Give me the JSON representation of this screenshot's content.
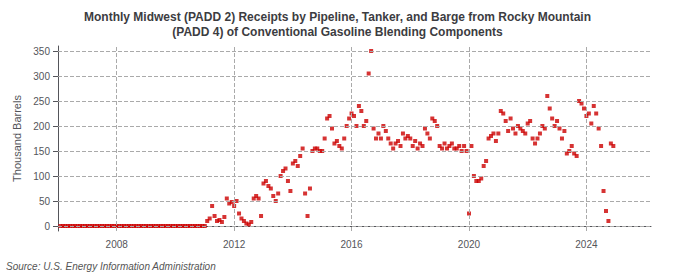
{
  "chart_data": {
    "type": "scatter",
    "title": "Monthly Midwest (PADD 2) Receipts by Pipeline, Tanker, and Barge from Rocky Mountain\n(PADD 4) of Conventional Gasoline Blending Components",
    "ylabel": "Thousand Barrels",
    "annotations": [
      "Source: U.S. Energy Information Administration"
    ],
    "color": "#cc0000",
    "marker": "square",
    "grid": true,
    "xlim": [
      2006.0,
      2026.2
    ],
    "xticks": [
      2008,
      2012,
      2016,
      2020,
      2024
    ],
    "ylim": [
      -10,
      360
    ],
    "yticks": [
      0,
      50,
      100,
      150,
      200,
      250,
      300,
      350
    ],
    "x": [
      2006.083,
      2006.167,
      2006.25,
      2006.333,
      2006.417,
      2006.5,
      2006.583,
      2006.667,
      2006.75,
      2006.833,
      2006.917,
      2007.0,
      2007.083,
      2007.167,
      2007.25,
      2007.333,
      2007.417,
      2007.5,
      2007.583,
      2007.667,
      2007.75,
      2007.833,
      2007.917,
      2008.0,
      2008.083,
      2008.167,
      2008.25,
      2008.333,
      2008.417,
      2008.5,
      2008.583,
      2008.667,
      2008.75,
      2008.833,
      2008.917,
      2009.0,
      2009.083,
      2009.167,
      2009.25,
      2009.333,
      2009.417,
      2009.5,
      2009.583,
      2009.667,
      2009.75,
      2009.833,
      2009.917,
      2010.0,
      2010.083,
      2010.167,
      2010.25,
      2010.333,
      2010.417,
      2010.5,
      2010.583,
      2010.667,
      2010.75,
      2010.833,
      2010.917,
      2011.0,
      2011.083,
      2011.167,
      2011.25,
      2011.333,
      2011.417,
      2011.5,
      2011.583,
      2011.667,
      2011.75,
      2011.833,
      2011.917,
      2012.0,
      2012.083,
      2012.167,
      2012.25,
      2012.333,
      2012.417,
      2012.5,
      2012.583,
      2012.667,
      2012.75,
      2012.833,
      2012.917,
      2013.0,
      2013.083,
      2013.167,
      2013.25,
      2013.333,
      2013.417,
      2013.5,
      2013.583,
      2013.667,
      2013.75,
      2013.833,
      2013.917,
      2014.0,
      2014.083,
      2014.167,
      2014.25,
      2014.333,
      2014.417,
      2014.5,
      2014.583,
      2014.667,
      2014.75,
      2014.833,
      2014.917,
      2015.0,
      2015.083,
      2015.167,
      2015.25,
      2015.333,
      2015.417,
      2015.5,
      2015.583,
      2015.667,
      2015.75,
      2015.833,
      2015.917,
      2016.0,
      2016.083,
      2016.167,
      2016.25,
      2016.333,
      2016.417,
      2016.5,
      2016.583,
      2016.667,
      2016.75,
      2016.833,
      2016.917,
      2017.0,
      2017.083,
      2017.167,
      2017.25,
      2017.333,
      2017.417,
      2017.5,
      2017.583,
      2017.667,
      2017.75,
      2017.833,
      2017.917,
      2018.0,
      2018.083,
      2018.167,
      2018.25,
      2018.333,
      2018.417,
      2018.5,
      2018.583,
      2018.667,
      2018.75,
      2018.833,
      2018.917,
      2019.0,
      2019.083,
      2019.167,
      2019.25,
      2019.333,
      2019.417,
      2019.5,
      2019.583,
      2019.667,
      2019.75,
      2019.833,
      2019.917,
      2020.0,
      2020.083,
      2020.167,
      2020.25,
      2020.333,
      2020.417,
      2020.5,
      2020.583,
      2020.667,
      2020.75,
      2020.833,
      2020.917,
      2021.0,
      2021.083,
      2021.167,
      2021.25,
      2021.333,
      2021.417,
      2021.5,
      2021.583,
      2021.667,
      2021.75,
      2021.833,
      2021.917,
      2022.0,
      2022.083,
      2022.167,
      2022.25,
      2022.333,
      2022.417,
      2022.5,
      2022.583,
      2022.667,
      2022.75,
      2022.833,
      2022.917,
      2023.0,
      2023.083,
      2023.167,
      2023.25,
      2023.333,
      2023.417,
      2023.5,
      2023.583,
      2023.667,
      2023.75,
      2023.833,
      2023.917,
      2024.0,
      2024.083,
      2024.167,
      2024.25,
      2024.333,
      2024.417,
      2024.5,
      2024.583,
      2024.667,
      2024.75,
      2024.833,
      2024.917
    ],
    "values": [
      0,
      0,
      0,
      0,
      0,
      0,
      0,
      0,
      0,
      0,
      0,
      0,
      0,
      0,
      0,
      0,
      0,
      0,
      0,
      0,
      0,
      0,
      0,
      0,
      0,
      0,
      0,
      0,
      0,
      0,
      0,
      0,
      0,
      0,
      0,
      0,
      0,
      0,
      0,
      0,
      0,
      0,
      0,
      0,
      0,
      0,
      0,
      0,
      0,
      0,
      0,
      0,
      0,
      0,
      0,
      0,
      0,
      0,
      0,
      0,
      10,
      15,
      40,
      20,
      10,
      12,
      8,
      18,
      55,
      45,
      48,
      40,
      50,
      25,
      15,
      10,
      5,
      3,
      8,
      55,
      60,
      55,
      20,
      85,
      90,
      80,
      75,
      60,
      50,
      65,
      100,
      110,
      115,
      90,
      70,
      125,
      130,
      120,
      140,
      155,
      65,
      20,
      75,
      150,
      155,
      155,
      150,
      150,
      175,
      215,
      220,
      195,
      165,
      170,
      160,
      155,
      175,
      200,
      215,
      225,
      220,
      200,
      240,
      230,
      200,
      210,
      305,
      350,
      195,
      175,
      185,
      175,
      200,
      190,
      175,
      165,
      155,
      165,
      170,
      160,
      185,
      175,
      180,
      175,
      160,
      170,
      155,
      165,
      160,
      195,
      185,
      175,
      215,
      210,
      200,
      160,
      155,
      165,
      155,
      160,
      165,
      155,
      155,
      160,
      150,
      160,
      150,
      25,
      160,
      100,
      90,
      90,
      95,
      120,
      130,
      175,
      180,
      185,
      170,
      185,
      230,
      225,
      210,
      190,
      215,
      195,
      185,
      200,
      195,
      190,
      185,
      205,
      210,
      175,
      165,
      175,
      185,
      200,
      195,
      260,
      235,
      215,
      200,
      210,
      195,
      175,
      190,
      145,
      150,
      160,
      145,
      140,
      250,
      245,
      235,
      220,
      225,
      205,
      240,
      225,
      195,
      160,
      70,
      30,
      10,
      165,
      160
    ]
  }
}
